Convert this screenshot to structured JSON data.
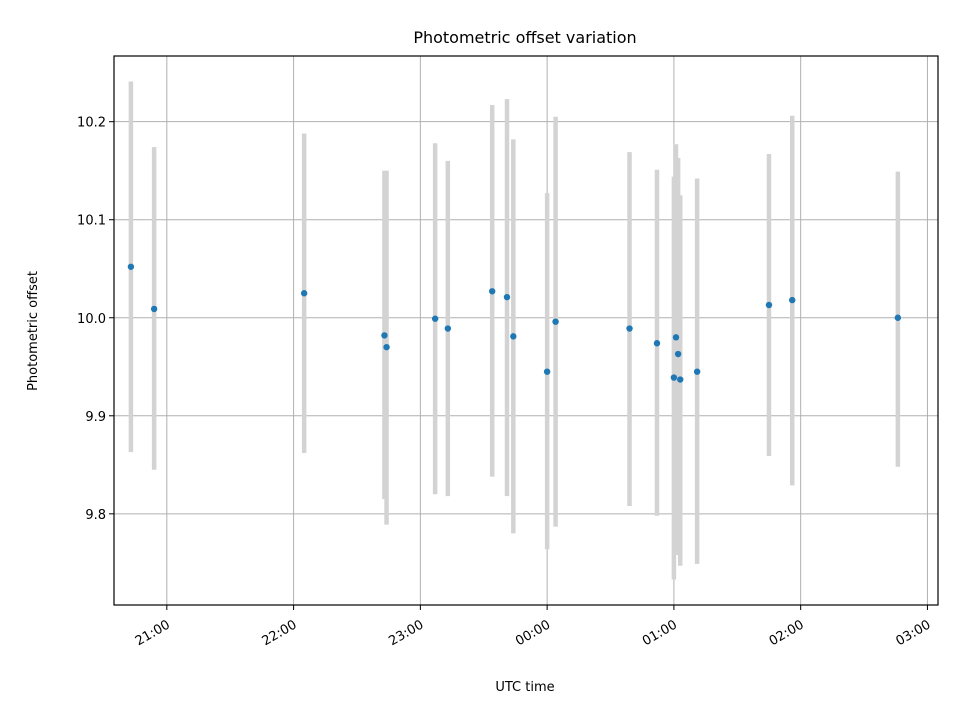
{
  "chart_data": {
    "type": "scatter",
    "title": "Photometric offset variation",
    "xlabel": "UTC time",
    "ylabel": "Photometric offset",
    "xlim": [
      "20:35",
      "03:05"
    ],
    "ylim": [
      9.707,
      10.267
    ],
    "x_ticks": [
      "21:00",
      "22:00",
      "23:00",
      "00:00",
      "01:00",
      "02:00",
      "03:00"
    ],
    "y_ticks": [
      "9.8",
      "9.9",
      "10.0",
      "10.1",
      "10.2"
    ],
    "grid": true,
    "series": [
      {
        "color": "#1f77b4",
        "error_color": "#d3d3d3",
        "points": [
          {
            "x": "20:43",
            "y": 10.052,
            "ylo": 9.863,
            "yhi": 10.241
          },
          {
            "x": "20:54",
            "y": 10.009,
            "ylo": 9.845,
            "yhi": 10.174
          },
          {
            "x": "22:05",
            "y": 10.025,
            "ylo": 9.862,
            "yhi": 10.188
          },
          {
            "x": "22:43",
            "y": 9.982,
            "ylo": 9.815,
            "yhi": 10.15
          },
          {
            "x": "22:44",
            "y": 9.97,
            "ylo": 9.789,
            "yhi": 10.15
          },
          {
            "x": "23:07",
            "y": 9.999,
            "ylo": 9.82,
            "yhi": 10.178
          },
          {
            "x": "23:13",
            "y": 9.989,
            "ylo": 9.818,
            "yhi": 10.16
          },
          {
            "x": "23:34",
            "y": 10.027,
            "ylo": 9.838,
            "yhi": 10.217
          },
          {
            "x": "23:41",
            "y": 10.021,
            "ylo": 9.818,
            "yhi": 10.223
          },
          {
            "x": "23:44",
            "y": 9.981,
            "ylo": 9.78,
            "yhi": 10.182
          },
          {
            "x": "00:00",
            "y": 9.945,
            "ylo": 9.764,
            "yhi": 10.127
          },
          {
            "x": "00:04",
            "y": 9.996,
            "ylo": 9.787,
            "yhi": 10.205
          },
          {
            "x": "00:39",
            "y": 9.989,
            "ylo": 9.808,
            "yhi": 10.169
          },
          {
            "x": "00:52",
            "y": 9.974,
            "ylo": 9.798,
            "yhi": 10.151
          },
          {
            "x": "01:00",
            "y": 9.939,
            "ylo": 9.733,
            "yhi": 10.144
          },
          {
            "x": "01:01",
            "y": 9.98,
            "ylo": 9.758,
            "yhi": 10.177
          },
          {
            "x": "01:02",
            "y": 9.963,
            "ylo": 9.763,
            "yhi": 10.163
          },
          {
            "x": "01:03",
            "y": 9.937,
            "ylo": 9.747,
            "yhi": 10.125
          },
          {
            "x": "01:11",
            "y": 9.945,
            "ylo": 9.749,
            "yhi": 10.142
          },
          {
            "x": "01:45",
            "y": 10.013,
            "ylo": 9.859,
            "yhi": 10.167
          },
          {
            "x": "01:56",
            "y": 10.018,
            "ylo": 9.829,
            "yhi": 10.206
          },
          {
            "x": "02:46",
            "y": 10.0,
            "ylo": 9.848,
            "yhi": 10.149
          }
        ]
      }
    ]
  }
}
